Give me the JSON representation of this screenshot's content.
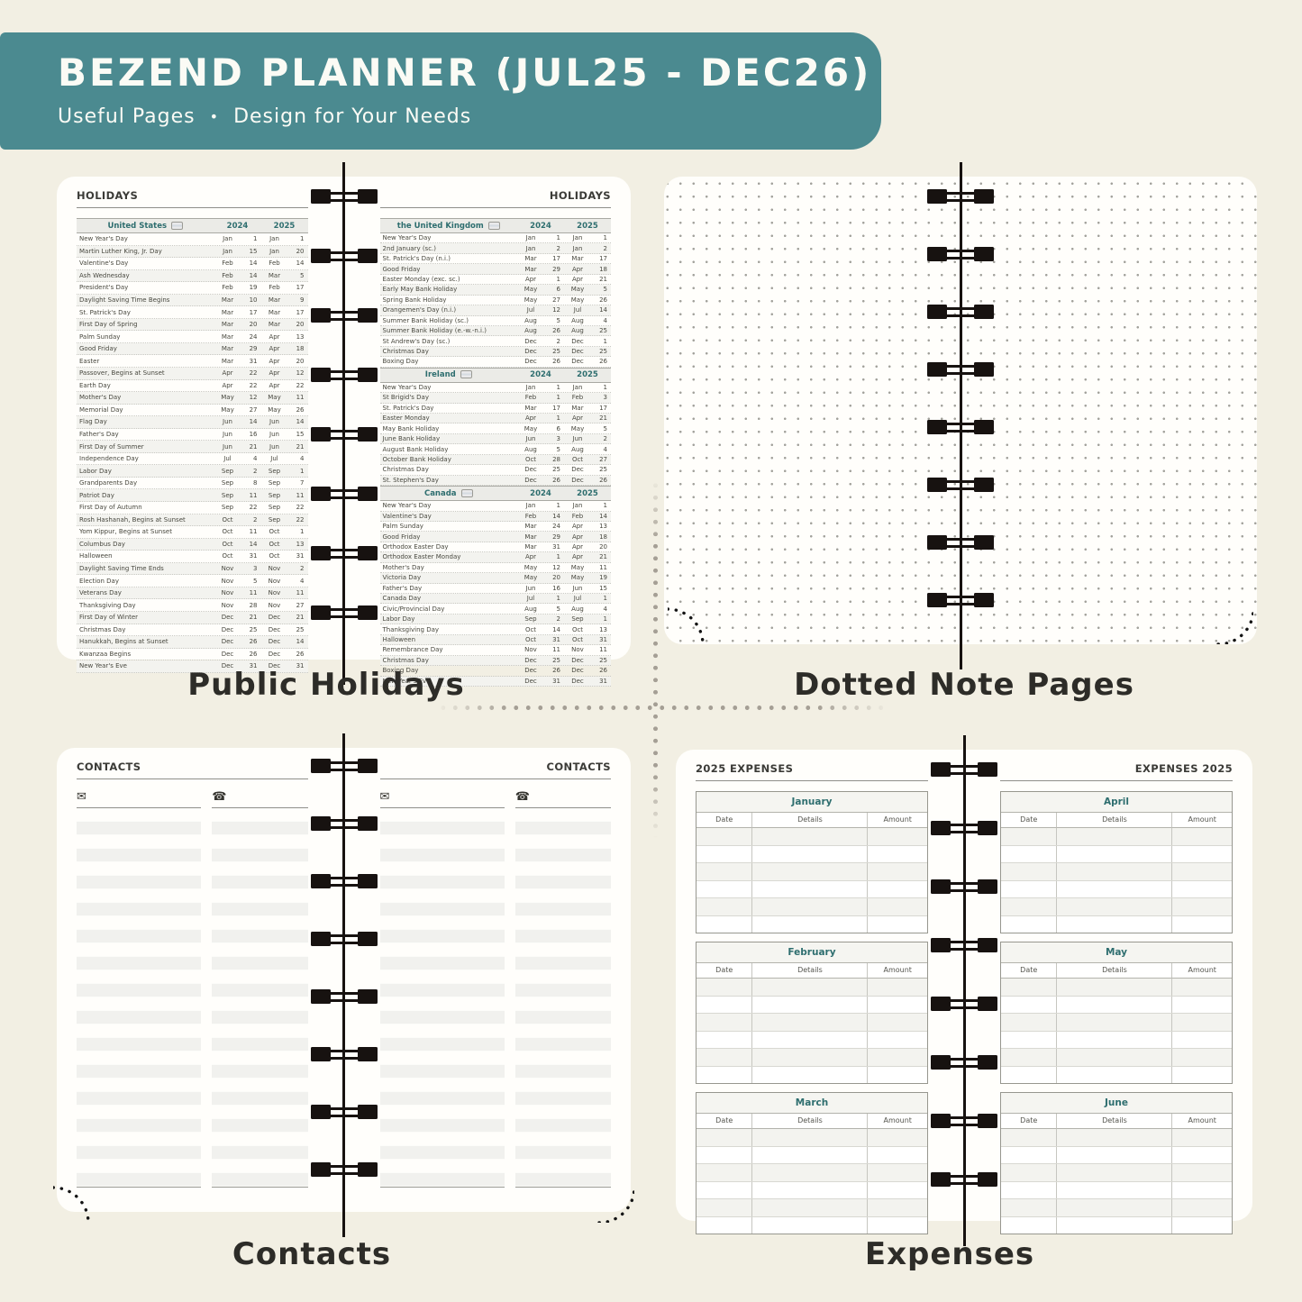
{
  "colors": {
    "background": "#f2efe3",
    "banner_teal": "#4b8a90",
    "teal_header_text": "#2e6e6f",
    "spiral_black": "#171210",
    "page_white": "#fffefb"
  },
  "banner": {
    "title": "BEZEND PLANNER (JUL25 - DEC26)",
    "subtitle_left": "Useful Pages",
    "subtitle_sep": "•",
    "subtitle_right": "Design for Your Needs"
  },
  "captions": {
    "holidays": "Public Holidays",
    "dotted": "Dotted Note Pages",
    "contacts": "Contacts",
    "expenses": "Expenses"
  },
  "holidays": {
    "page_title": "HOLIDAYS",
    "united_states": {
      "country": "United States",
      "flag_icon": "us-flag-icon",
      "years": [
        "2024",
        "2025"
      ],
      "rows": [
        [
          "New Year's Day",
          "Jan",
          "1",
          "Jan",
          "1"
        ],
        [
          "Martin Luther King, Jr. Day",
          "Jan",
          "15",
          "Jan",
          "20"
        ],
        [
          "Valentine's Day",
          "Feb",
          "14",
          "Feb",
          "14"
        ],
        [
          "Ash Wednesday",
          "Feb",
          "14",
          "Mar",
          "5"
        ],
        [
          "President's Day",
          "Feb",
          "19",
          "Feb",
          "17"
        ],
        [
          "Daylight Saving Time Begins",
          "Mar",
          "10",
          "Mar",
          "9"
        ],
        [
          "St. Patrick's Day",
          "Mar",
          "17",
          "Mar",
          "17"
        ],
        [
          "First Day of Spring",
          "Mar",
          "20",
          "Mar",
          "20"
        ],
        [
          "Palm Sunday",
          "Mar",
          "24",
          "Apr",
          "13"
        ],
        [
          "Good Friday",
          "Mar",
          "29",
          "Apr",
          "18"
        ],
        [
          "Easter",
          "Mar",
          "31",
          "Apr",
          "20"
        ],
        [
          "Passover, Begins at Sunset",
          "Apr",
          "22",
          "Apr",
          "12"
        ],
        [
          "Earth Day",
          "Apr",
          "22",
          "Apr",
          "22"
        ],
        [
          "Mother's Day",
          "May",
          "12",
          "May",
          "11"
        ],
        [
          "Memorial Day",
          "May",
          "27",
          "May",
          "26"
        ],
        [
          "Flag Day",
          "Jun",
          "14",
          "Jun",
          "14"
        ],
        [
          "Father's Day",
          "Jun",
          "16",
          "Jun",
          "15"
        ],
        [
          "First Day of Summer",
          "Jun",
          "21",
          "Jun",
          "21"
        ],
        [
          "Independence Day",
          "Jul",
          "4",
          "Jul",
          "4"
        ],
        [
          "Labor Day",
          "Sep",
          "2",
          "Sep",
          "1"
        ],
        [
          "Grandparents Day",
          "Sep",
          "8",
          "Sep",
          "7"
        ],
        [
          "Patriot Day",
          "Sep",
          "11",
          "Sep",
          "11"
        ],
        [
          "First Day of Autumn",
          "Sep",
          "22",
          "Sep",
          "22"
        ],
        [
          "Rosh Hashanah, Begins at Sunset",
          "Oct",
          "2",
          "Sep",
          "22"
        ],
        [
          "Yom Kippur, Begins at Sunset",
          "Oct",
          "11",
          "Oct",
          "1"
        ],
        [
          "Columbus Day",
          "Oct",
          "14",
          "Oct",
          "13"
        ],
        [
          "Halloween",
          "Oct",
          "31",
          "Oct",
          "31"
        ],
        [
          "Daylight Saving Time Ends",
          "Nov",
          "3",
          "Nov",
          "2"
        ],
        [
          "Election Day",
          "Nov",
          "5",
          "Nov",
          "4"
        ],
        [
          "Veterans Day",
          "Nov",
          "11",
          "Nov",
          "11"
        ],
        [
          "Thanksgiving Day",
          "Nov",
          "28",
          "Nov",
          "27"
        ],
        [
          "First Day of Winter",
          "Dec",
          "21",
          "Dec",
          "21"
        ],
        [
          "Christmas Day",
          "Dec",
          "25",
          "Dec",
          "25"
        ],
        [
          "Hanukkah, Begins at Sunset",
          "Dec",
          "26",
          "Dec",
          "14"
        ],
        [
          "Kwanzaa Begins",
          "Dec",
          "26",
          "Dec",
          "26"
        ],
        [
          "New Year's Eve",
          "Dec",
          "31",
          "Dec",
          "31"
        ]
      ]
    },
    "sections": [
      {
        "country": "the United Kingdom",
        "flag_icon": "uk-flag-icon",
        "years": [
          "2024",
          "2025"
        ],
        "rows": [
          [
            "New Year's Day",
            "Jan",
            "1",
            "Jan",
            "1"
          ],
          [
            "2nd January (sc.)",
            "Jan",
            "2",
            "Jan",
            "2"
          ],
          [
            "St. Patrick's Day (n.i.)",
            "Mar",
            "17",
            "Mar",
            "17"
          ],
          [
            "Good Friday",
            "Mar",
            "29",
            "Apr",
            "18"
          ],
          [
            "Easter Monday (exc. sc.)",
            "Apr",
            "1",
            "Apr",
            "21"
          ],
          [
            "Early May Bank Holiday",
            "May",
            "6",
            "May",
            "5"
          ],
          [
            "Spring Bank Holiday",
            "May",
            "27",
            "May",
            "26"
          ],
          [
            "Orangemen's Day (n.i.)",
            "Jul",
            "12",
            "Jul",
            "14"
          ],
          [
            "Summer Bank Holiday (sc.)",
            "Aug",
            "5",
            "Aug",
            "4"
          ],
          [
            "Summer Bank Holiday (e.-w.-n.i.)",
            "Aug",
            "26",
            "Aug",
            "25"
          ],
          [
            "St Andrew's Day (sc.)",
            "Dec",
            "2",
            "Dec",
            "1"
          ],
          [
            "Christmas Day",
            "Dec",
            "25",
            "Dec",
            "25"
          ],
          [
            "Boxing Day",
            "Dec",
            "26",
            "Dec",
            "26"
          ]
        ]
      },
      {
        "country": "Ireland",
        "flag_icon": "ireland-flag-icon",
        "years": [
          "2024",
          "2025"
        ],
        "rows": [
          [
            "New Year's Day",
            "Jan",
            "1",
            "Jan",
            "1"
          ],
          [
            "St Brigid's Day",
            "Feb",
            "1",
            "Feb",
            "3"
          ],
          [
            "St. Patrick's Day",
            "Mar",
            "17",
            "Mar",
            "17"
          ],
          [
            "Easter Monday",
            "Apr",
            "1",
            "Apr",
            "21"
          ],
          [
            "May Bank Holiday",
            "May",
            "6",
            "May",
            "5"
          ],
          [
            "June Bank Holiday",
            "Jun",
            "3",
            "Jun",
            "2"
          ],
          [
            "August Bank Holiday",
            "Aug",
            "5",
            "Aug",
            "4"
          ],
          [
            "October Bank Holiday",
            "Oct",
            "28",
            "Oct",
            "27"
          ],
          [
            "Christmas Day",
            "Dec",
            "25",
            "Dec",
            "25"
          ],
          [
            "St. Stephen's Day",
            "Dec",
            "26",
            "Dec",
            "26"
          ]
        ]
      },
      {
        "country": "Canada",
        "flag_icon": "canada-flag-icon",
        "years": [
          "2024",
          "2025"
        ],
        "rows": [
          [
            "New Year's Day",
            "Jan",
            "1",
            "Jan",
            "1"
          ],
          [
            "Valentine's Day",
            "Feb",
            "14",
            "Feb",
            "14"
          ],
          [
            "Palm Sunday",
            "Mar",
            "24",
            "Apr",
            "13"
          ],
          [
            "Good Friday",
            "Mar",
            "29",
            "Apr",
            "18"
          ],
          [
            "Orthodox Easter Day",
            "Mar",
            "31",
            "Apr",
            "20"
          ],
          [
            "Orthodox Easter Monday",
            "Apr",
            "1",
            "Apr",
            "21"
          ],
          [
            "Mother's Day",
            "May",
            "12",
            "May",
            "11"
          ],
          [
            "Victoria Day",
            "May",
            "20",
            "May",
            "19"
          ],
          [
            "Father's Day",
            "Jun",
            "16",
            "Jun",
            "15"
          ],
          [
            "Canada Day",
            "Jul",
            "1",
            "Jul",
            "1"
          ],
          [
            "Civic/Provincial Day",
            "Aug",
            "5",
            "Aug",
            "4"
          ],
          [
            "Labor Day",
            "Sep",
            "2",
            "Sep",
            "1"
          ],
          [
            "Thanksgiving Day",
            "Oct",
            "14",
            "Oct",
            "13"
          ],
          [
            "Halloween",
            "Oct",
            "31",
            "Oct",
            "31"
          ],
          [
            "Remembrance Day",
            "Nov",
            "11",
            "Nov",
            "11"
          ],
          [
            "Christmas Day",
            "Dec",
            "25",
            "Dec",
            "25"
          ],
          [
            "Boxing Day",
            "Dec",
            "26",
            "Dec",
            "26"
          ],
          [
            "New Year's Eve",
            "Dec",
            "31",
            "Dec",
            "31"
          ]
        ]
      }
    ]
  },
  "contacts": {
    "page_title": "CONTACTS",
    "email_icon": "✉",
    "phone_icon": "☎",
    "rows_per_column": 28
  },
  "expenses": {
    "left_page_title": "2025 EXPENSES",
    "right_page_title": "EXPENSES 2025",
    "columns": [
      "Date",
      "Details",
      "Amount"
    ],
    "left_months": [
      "January",
      "February",
      "March"
    ],
    "right_months": [
      "April",
      "May",
      "June"
    ],
    "rows_per_table": 6
  }
}
